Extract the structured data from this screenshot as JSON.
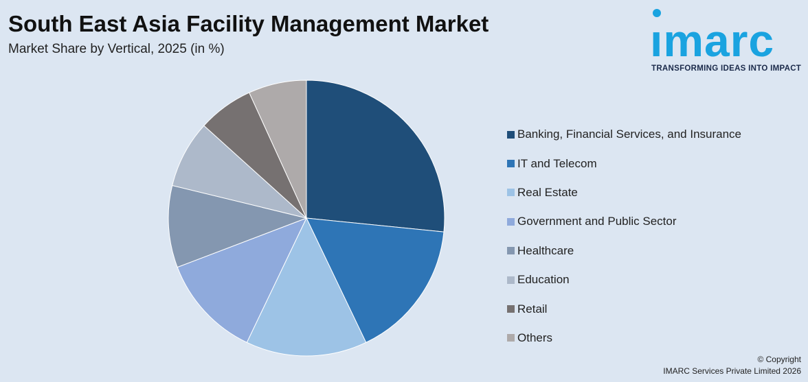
{
  "header": {
    "title": "South East Asia Facility Management Market",
    "subtitle": "Market Share by Vertical, 2025 (in %)"
  },
  "logo": {
    "word": "ımarc",
    "tagline": "TRANSFORMING IDEAS INTO IMPACT",
    "color": "#1aa3e0"
  },
  "footer": {
    "copyright_line1": "© Copyright",
    "copyright_line2": "IMARC Services Private Limited 2026"
  },
  "chart_data": {
    "type": "pie",
    "title": "South East Asia Facility Management Market",
    "subtitle": "Market Share by Vertical, 2025 (in %)",
    "legend_position": "right",
    "start_angle": "12 o'clock, clockwise",
    "slices": [
      {
        "label": "Banking, Financial Services, and Insurance",
        "value": 26.6,
        "color": "#1f4e79"
      },
      {
        "label": "IT and Telecom",
        "value": 16.3,
        "color": "#2e75b6"
      },
      {
        "label": "Real Estate",
        "value": 14.2,
        "color": "#9dc3e6"
      },
      {
        "label": "Government and Public Sector",
        "value": 12.1,
        "color": "#8faadc"
      },
      {
        "label": "Healthcare",
        "value": 9.6,
        "color": "#8497b0"
      },
      {
        "label": "Education",
        "value": 7.9,
        "color": "#adb9ca"
      },
      {
        "label": "Retail",
        "value": 6.5,
        "color": "#767171"
      },
      {
        "label": "Others",
        "value": 6.8,
        "color": "#aeaaaa"
      }
    ]
  }
}
